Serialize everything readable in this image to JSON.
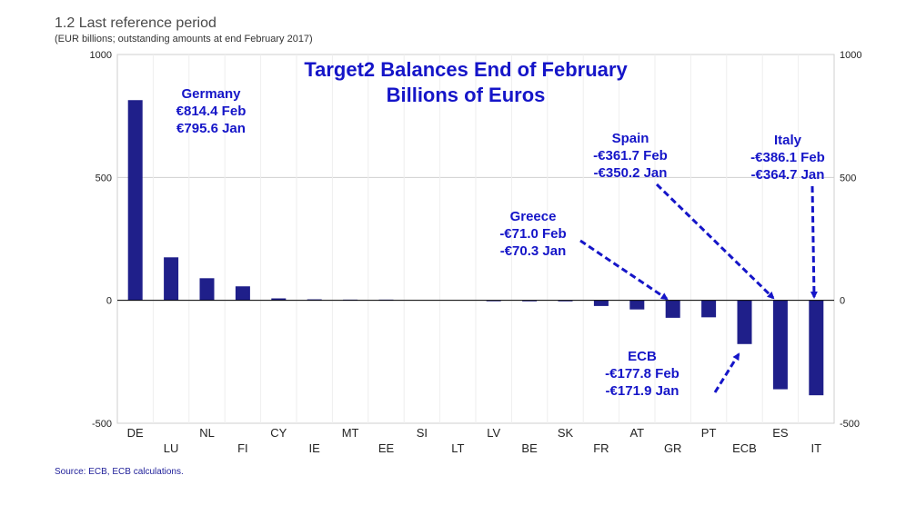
{
  "header": {
    "title": "1.2 Last reference period",
    "subtitle": "(EUR billions; outstanding amounts at end February 2017)"
  },
  "footer": {
    "source": "Source: ECB, ECB calculations."
  },
  "colors": {
    "bar": "#1f1f8a",
    "annotation": "#1515c8",
    "grid": "#d0d0d0"
  },
  "chart_data": {
    "type": "bar",
    "title": "Target2 Balances End of February",
    "subtitle": "Billions of Euros",
    "xlabel": "",
    "ylabel": "",
    "ylim": [
      -500,
      1000
    ],
    "yticks": [
      1000,
      500,
      0,
      -500
    ],
    "ytick_labels": [
      "1000",
      "500",
      "0",
      "-500"
    ],
    "grid": true,
    "categories": [
      "DE",
      "LU",
      "NL",
      "FI",
      "CY",
      "IE",
      "MT",
      "EE",
      "SI",
      "LT",
      "LV",
      "BE",
      "SK",
      "FR",
      "AT",
      "GR",
      "PT",
      "ECB",
      "ES",
      "IT"
    ],
    "values": [
      814.4,
      175,
      90,
      57,
      8,
      4,
      3,
      3,
      0,
      0,
      -3,
      -4,
      -4,
      -23,
      -37,
      -71.0,
      -69,
      -177.8,
      -361.7,
      -386.1
    ],
    "annotations": [
      {
        "name": "germany",
        "lines": [
          "Germany",
          "€814.4 Feb",
          "€795.6 Jan"
        ]
      },
      {
        "name": "spain",
        "lines": [
          "Spain",
          "-€361.7 Feb",
          "-€350.2 Jan"
        ]
      },
      {
        "name": "italy",
        "lines": [
          "Italy",
          "-€386.1 Feb",
          "-€364.7 Jan"
        ]
      },
      {
        "name": "greece",
        "lines": [
          "Greece",
          "-€71.0 Feb",
          "-€70.3 Jan"
        ]
      },
      {
        "name": "ecb",
        "lines": [
          "ECB",
          "-€177.8 Feb",
          "-€171.9 Jan"
        ]
      }
    ]
  }
}
